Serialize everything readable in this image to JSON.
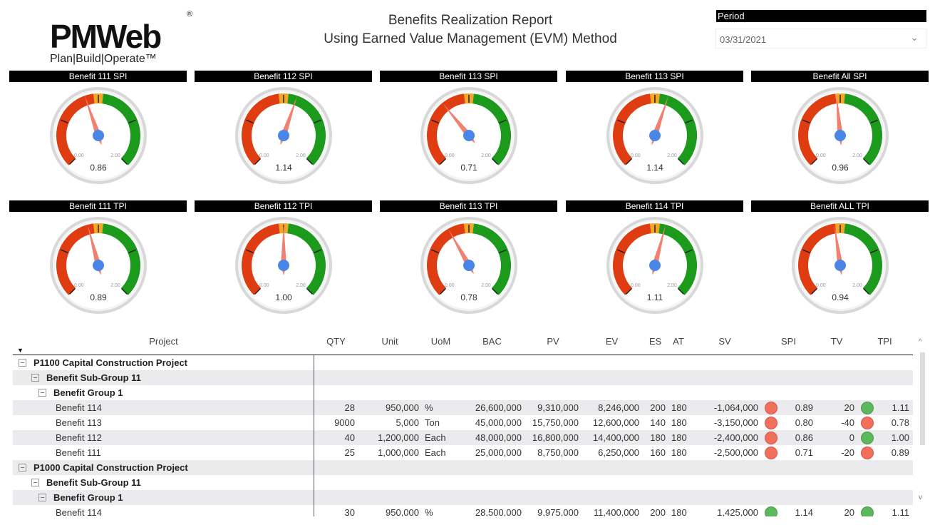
{
  "logo": {
    "text": "PMWeb",
    "registered": "®",
    "tagline": "Plan|Build|Operate™"
  },
  "header": {
    "title_line1": "Benefits Realization Report",
    "title_line2": "Using Earned Value Management (EVM) Method"
  },
  "filter": {
    "label": "Period",
    "value": "03/31/2021"
  },
  "colors": {
    "red": "#e03c12",
    "orange": "#f5a623",
    "green": "#1c9a1c",
    "needle": "#f08070",
    "hub": "#4a86e8",
    "dot_red": "#f0705a",
    "dot_green": "#5cb85c"
  },
  "gauges": [
    {
      "title": "Benefit 111 SPI",
      "value": 0.86,
      "label": "0.86"
    },
    {
      "title": "Benefit 112 SPI",
      "value": 1.14,
      "label": "1.14"
    },
    {
      "title": "Benefit 113 SPI",
      "value": 0.71,
      "label": "0.71"
    },
    {
      "title": "Benefit 113 SPI",
      "value": 1.14,
      "label": "1.14"
    },
    {
      "title": "Benefit All SPI",
      "value": 0.96,
      "label": "0.96"
    },
    {
      "title": "Benefit 111 TPI",
      "value": 0.89,
      "label": "0.89"
    },
    {
      "title": "Benefit 112 TPI",
      "value": 1.0,
      "label": "1.00"
    },
    {
      "title": "Benefit 113 TPI",
      "value": 0.78,
      "label": "0.78"
    },
    {
      "title": "Benefit 114 TPI",
      "value": 1.11,
      "label": "1.11"
    },
    {
      "title": "Benefit ALL TPI",
      "value": 0.94,
      "label": "0.94"
    }
  ],
  "gauge_scale": {
    "min": "0.00",
    "max": "2.00"
  },
  "table": {
    "columns": [
      "Project",
      "QTY",
      "Unit",
      "UoM",
      "BAC",
      "PV",
      "EV",
      "ES",
      "AT",
      "SV",
      "SPI",
      "TV",
      "TPI"
    ],
    "rows": [
      {
        "level": 0,
        "name": "P1100 Capital Construction Project"
      },
      {
        "level": 1,
        "name": "Benefit Sub-Group 11"
      },
      {
        "level": 2,
        "name": "Benefit Group 1"
      },
      {
        "level": 3,
        "name": "Benefit 114",
        "qty": "28",
        "unit": "950,000",
        "uom": "%",
        "bac": "26,600,000",
        "pv": "9,310,000",
        "ev": "8,246,000",
        "es": "200",
        "at": "180",
        "sv": "-1,064,000",
        "spi_status": "red",
        "spi": "0.89",
        "tv": "20",
        "tpi_status": "green",
        "tpi": "1.11"
      },
      {
        "level": 3,
        "name": "Benefit 113",
        "qty": "9000",
        "unit": "5,000",
        "uom": "Ton",
        "bac": "45,000,000",
        "pv": "15,750,000",
        "ev": "12,600,000",
        "es": "140",
        "at": "180",
        "sv": "-3,150,000",
        "spi_status": "red",
        "spi": "0.80",
        "tv": "-40",
        "tpi_status": "red",
        "tpi": "0.78"
      },
      {
        "level": 3,
        "name": "Benefit 112",
        "qty": "40",
        "unit": "1,200,000",
        "uom": "Each",
        "bac": "48,000,000",
        "pv": "16,800,000",
        "ev": "14,400,000",
        "es": "180",
        "at": "180",
        "sv": "-2,400,000",
        "spi_status": "red",
        "spi": "0.86",
        "tv": "0",
        "tpi_status": "green",
        "tpi": "1.00"
      },
      {
        "level": 3,
        "name": "Benefit 111",
        "qty": "25",
        "unit": "1,000,000",
        "uom": "Each",
        "bac": "25,000,000",
        "pv": "8,750,000",
        "ev": "6,250,000",
        "es": "160",
        "at": "180",
        "sv": "-2,500,000",
        "spi_status": "red",
        "spi": "0.71",
        "tv": "-20",
        "tpi_status": "red",
        "tpi": "0.89"
      },
      {
        "level": 0,
        "name": "P1000 Capital Construction Project"
      },
      {
        "level": 1,
        "name": "Benefit Sub-Group 11"
      },
      {
        "level": 2,
        "name": "Benefit Group 1"
      },
      {
        "level": 3,
        "name": "Benefit 114",
        "qty": "30",
        "unit": "950,000",
        "uom": "%",
        "bac": "28,500,000",
        "pv": "9,975,000",
        "ev": "11,400,000",
        "es": "200",
        "at": "180",
        "sv": "1,425,000",
        "spi_status": "green",
        "spi": "1.14",
        "tv": "20",
        "tpi_status": "green",
        "tpi": "1.11"
      }
    ]
  }
}
